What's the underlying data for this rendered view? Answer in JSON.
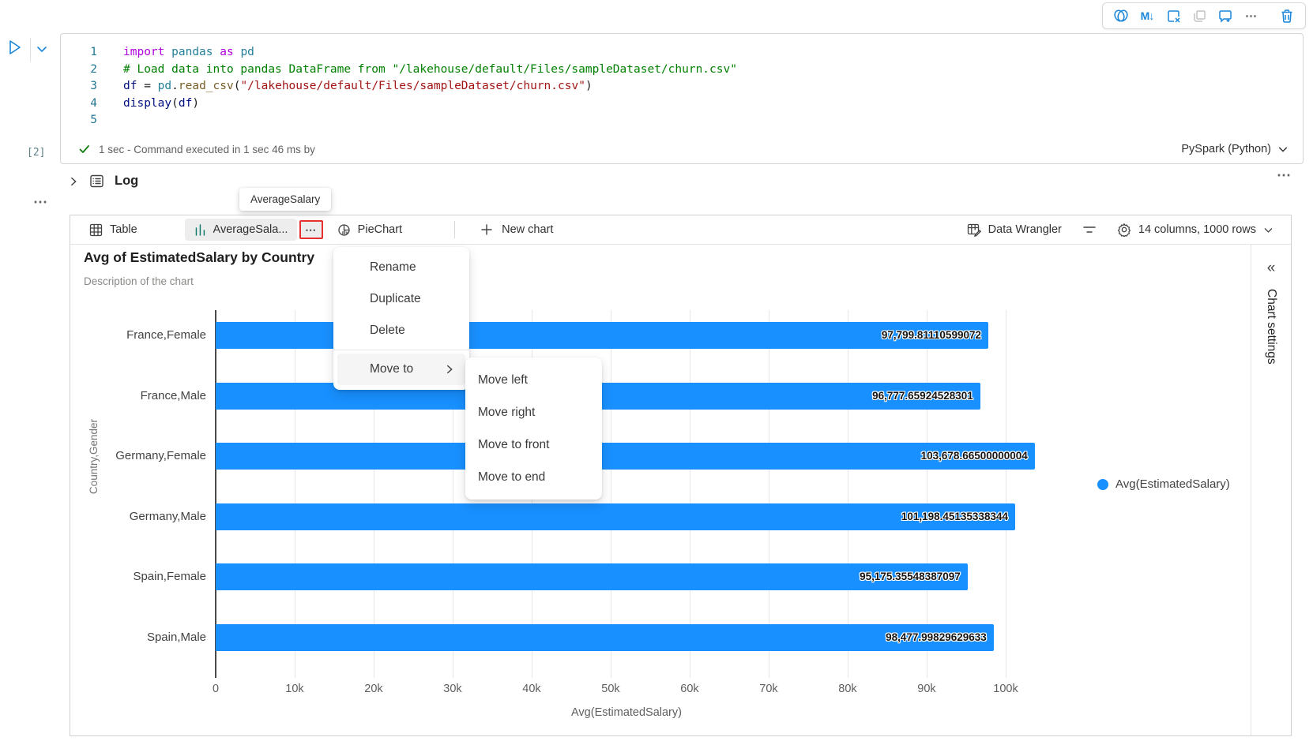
{
  "accent": {
    "toolbar_blue": "#1a86d9",
    "bar_blue": "#1890ff",
    "red_outline": "#e5302f",
    "check_green": "#107c10"
  },
  "cell_toolbar": {
    "more_glyph": "⋯",
    "markdown_glyph": "M↓"
  },
  "code_cell": {
    "execution_count": "[2]",
    "status_text": "1 sec - Command executed in 1 sec 46 ms by",
    "kernel_label": "PySpark (Python)",
    "lines": [
      {
        "num": "1",
        "tokens": [
          {
            "c": "kw",
            "t": "import"
          },
          {
            "c": "pl",
            "t": " "
          },
          {
            "c": "mod",
            "t": "pandas"
          },
          {
            "c": "pl",
            "t": " "
          },
          {
            "c": "kw",
            "t": "as"
          },
          {
            "c": "pl",
            "t": " "
          },
          {
            "c": "mod",
            "t": "pd"
          }
        ]
      },
      {
        "num": "2",
        "tokens": [
          {
            "c": "com",
            "t": "# Load data into pandas DataFrame from \"/lakehouse/default/Files/sampleDataset/churn.csv\""
          }
        ]
      },
      {
        "num": "3",
        "tokens": [
          {
            "c": "var",
            "t": "df"
          },
          {
            "c": "pl",
            "t": " = "
          },
          {
            "c": "mod",
            "t": "pd"
          },
          {
            "c": "pl",
            "t": "."
          },
          {
            "c": "fn",
            "t": "read_csv"
          },
          {
            "c": "pl",
            "t": "("
          },
          {
            "c": "str",
            "t": "\"/lakehouse/default/Files/sampleDataset/churn.csv\""
          },
          {
            "c": "pl",
            "t": ")"
          }
        ]
      },
      {
        "num": "4",
        "tokens": [
          {
            "c": "var",
            "t": "display"
          },
          {
            "c": "pl",
            "t": "("
          },
          {
            "c": "var",
            "t": "df"
          },
          {
            "c": "pl",
            "t": ")"
          }
        ]
      },
      {
        "num": "5",
        "tokens": []
      }
    ]
  },
  "log_section": {
    "label": "Log",
    "more_glyph": "⋯"
  },
  "tab_tooltip": {
    "text": "AverageSalary"
  },
  "output_toolbar": {
    "table_tab": "Table",
    "chart_tab": "AverageSala...",
    "chart_tab_more_glyph": "⋯",
    "pie_tab": "PieChart",
    "new_chart": "New chart",
    "data_wrangler": "Data Wrangler",
    "table_info": "14 columns, 1000 rows"
  },
  "context_menu": {
    "rename": "Rename",
    "duplicate": "Duplicate",
    "delete": "Delete",
    "move_to": "Move to"
  },
  "move_submenu": {
    "items": [
      "Move left",
      "Move right",
      "Move to front",
      "Move to end"
    ]
  },
  "chart_settings": {
    "label": "Chart settings",
    "collapse_glyph": "«"
  },
  "chart_data": {
    "type": "bar",
    "orientation": "horizontal",
    "title": "Avg of EstimatedSalary by Country",
    "subtitle": "Description of the chart",
    "categories": [
      "France,Female",
      "France,Male",
      "Germany,Female",
      "Germany,Male",
      "Spain,Female",
      "Spain,Male"
    ],
    "values": [
      97799.81110599072,
      96777.65924528301,
      103678.66500000004,
      101198.45135338344,
      95175.35548387097,
      98477.99829629633
    ],
    "value_labels": [
      "97,799.81110599072",
      "96,777.65924528301",
      "103,678.66500000004",
      "101,198.45135338344",
      "95,175.35548387097",
      "98,477.99829629633"
    ],
    "xlabel": "Avg(EstimatedSalary)",
    "ylabel": "Country,Gender",
    "x_ticks": [
      "0",
      "10k",
      "20k",
      "30k",
      "40k",
      "50k",
      "60k",
      "70k",
      "80k",
      "90k",
      "100k"
    ],
    "xlim": [
      0,
      104000
    ],
    "grid": true,
    "bar_color": "#1890ff",
    "legend_position": "right",
    "legend": [
      {
        "label": "Avg(EstimatedSalary)",
        "color": "#1890ff"
      }
    ]
  }
}
